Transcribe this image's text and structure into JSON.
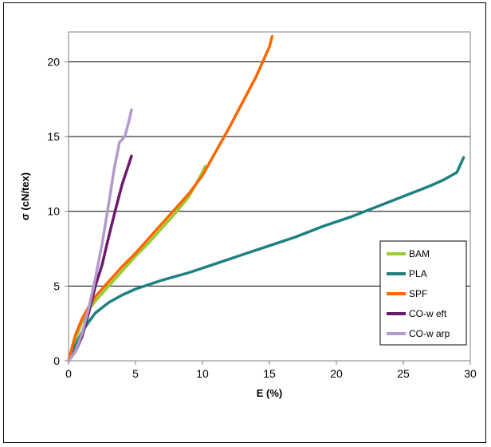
{
  "chart_data": {
    "type": "line",
    "title": "",
    "xlabel": "E (%)",
    "ylabel": "σ (cN/tex)",
    "xlim": [
      0,
      30
    ],
    "ylim": [
      0,
      22
    ],
    "xticks": [
      0,
      5,
      10,
      15,
      20,
      25,
      30
    ],
    "yticks": [
      0,
      5,
      10,
      15,
      20
    ],
    "grid": "horizontal",
    "legend_position": "bottom-right",
    "series": [
      {
        "name": "BAM",
        "color": "#99cc33",
        "x": [
          0,
          0.5,
          1,
          1.5,
          2,
          3,
          4,
          5,
          6,
          7,
          8,
          9,
          9.5,
          10,
          10.2
        ],
        "y": [
          0,
          1.4,
          2.6,
          3.4,
          4.0,
          5.0,
          6.0,
          7.0,
          7.9,
          8.9,
          9.9,
          11.0,
          11.8,
          12.6,
          13.0
        ]
      },
      {
        "name": "PLA",
        "color": "#1f8080",
        "x": [
          0,
          0.5,
          1,
          1.5,
          2,
          3,
          4,
          5,
          7,
          9,
          11,
          13,
          15,
          17,
          19,
          21,
          23,
          25,
          27,
          28,
          29,
          29.5
        ],
        "y": [
          0,
          1.0,
          1.9,
          2.6,
          3.2,
          3.9,
          4.4,
          4.8,
          5.4,
          5.9,
          6.5,
          7.1,
          7.7,
          8.3,
          9.0,
          9.6,
          10.3,
          11.0,
          11.7,
          12.1,
          12.6,
          13.6
        ]
      },
      {
        "name": "SPF",
        "color": "#ff6600",
        "x": [
          0,
          0.5,
          1,
          1.5,
          2,
          3,
          4,
          5,
          6,
          7,
          8,
          9,
          10,
          11,
          12,
          13,
          14,
          15,
          15.2
        ],
        "y": [
          0,
          1.7,
          2.8,
          3.6,
          4.3,
          5.3,
          6.3,
          7.2,
          8.2,
          9.2,
          10.2,
          11.2,
          12.4,
          14.0,
          15.6,
          17.3,
          19.0,
          21.0,
          21.7
        ]
      },
      {
        "name": "CO-w eft",
        "color": "#6b1a6b",
        "x": [
          0,
          0.5,
          1,
          1.5,
          2,
          2.5,
          3,
          3.5,
          4,
          4.3,
          4.7
        ],
        "y": [
          0,
          0.6,
          1.6,
          3.2,
          5.0,
          6.4,
          8.3,
          10.1,
          11.8,
          12.6,
          13.7
        ]
      },
      {
        "name": "CO-w arp",
        "color": "#b399cc",
        "x": [
          0,
          0.5,
          1,
          1.5,
          2,
          2.5,
          3,
          3.4,
          3.8,
          4.2,
          4.5,
          4.7
        ],
        "y": [
          0,
          0.6,
          1.8,
          3.5,
          5.5,
          7.8,
          10.5,
          12.8,
          14.6,
          15.0,
          16.0,
          16.8
        ]
      }
    ]
  }
}
